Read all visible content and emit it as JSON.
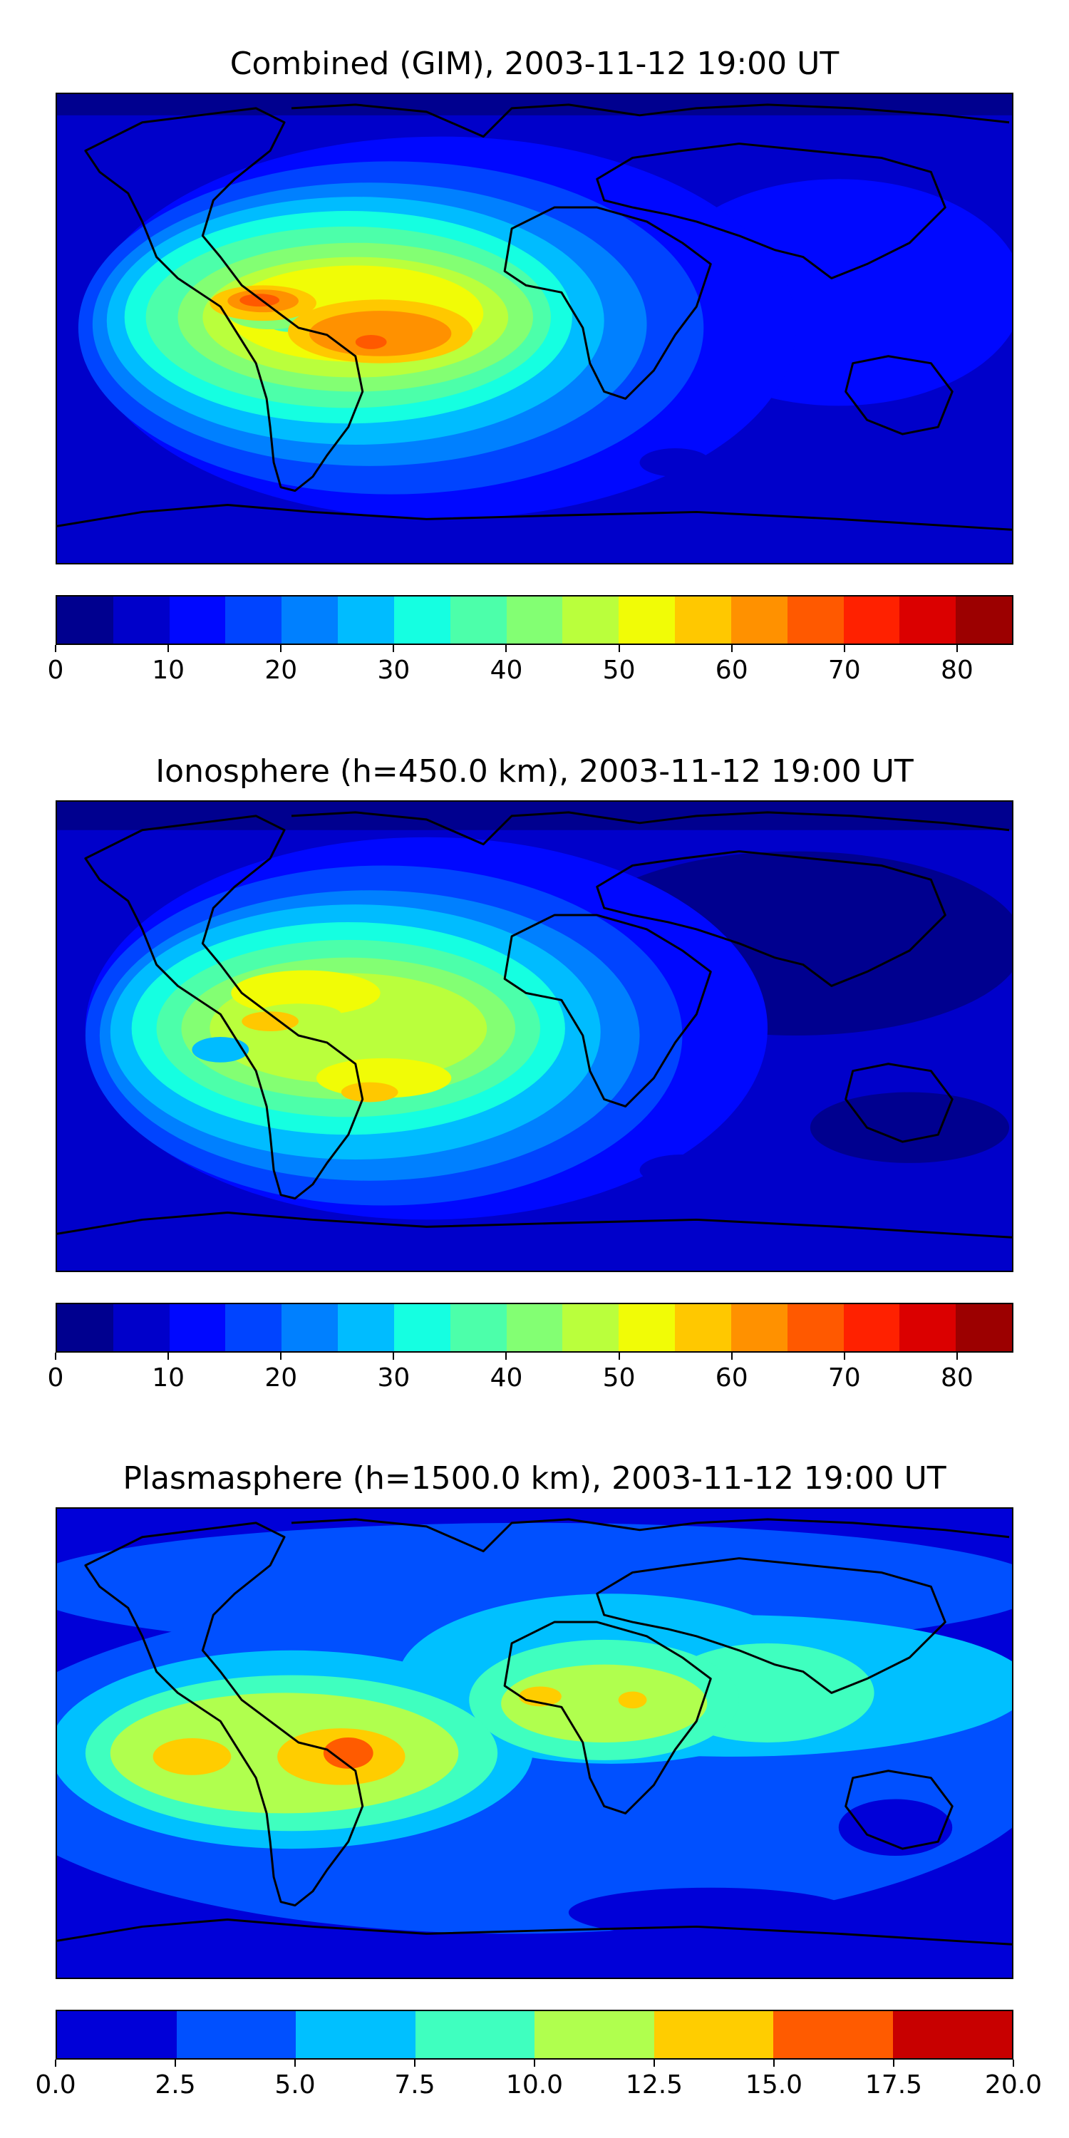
{
  "panels": [
    {
      "title": "Combined (GIM), 2003-11-12 19:00 UT",
      "colorbar": {
        "colors": [
          "#00008f",
          "#0000ca",
          "#0008ff",
          "#0044ff",
          "#0080ff",
          "#00bcff",
          "#15ffe1",
          "#4cffaa",
          "#83ff73",
          "#baff3c",
          "#f1fc06",
          "#ffc800",
          "#ff9100",
          "#ff5900",
          "#ff2100",
          "#db0000",
          "#9c0000"
        ],
        "ticks": [
          "0",
          "10",
          "20",
          "30",
          "40",
          "50",
          "60",
          "70",
          "80"
        ],
        "tick_values": [
          0,
          10,
          20,
          30,
          40,
          50,
          60,
          70,
          80
        ],
        "range": [
          0,
          85
        ]
      }
    },
    {
      "title": "Ionosphere  (h=450.0 km), 2003-11-12 19:00 UT",
      "colorbar": {
        "colors": [
          "#00008f",
          "#0000ca",
          "#0008ff",
          "#0044ff",
          "#0080ff",
          "#00bcff",
          "#15ffe1",
          "#4cffaa",
          "#83ff73",
          "#baff3c",
          "#f1fc06",
          "#ffc800",
          "#ff9100",
          "#ff5900",
          "#ff2100",
          "#db0000",
          "#9c0000"
        ],
        "ticks": [
          "0",
          "10",
          "20",
          "30",
          "40",
          "50",
          "60",
          "70",
          "80"
        ],
        "tick_values": [
          0,
          10,
          20,
          30,
          40,
          50,
          60,
          70,
          80
        ],
        "range": [
          0,
          85
        ]
      }
    },
    {
      "title": "Plasmasphere (h=1500.0 km), 2003-11-12 19:00 UT",
      "colorbar": {
        "colors": [
          "#0000d8",
          "#0050ff",
          "#00c0ff",
          "#3fffbf",
          "#b0ff4e",
          "#ffcd00",
          "#ff5b00",
          "#c80000"
        ],
        "ticks": [
          "0.0",
          "2.5",
          "5.0",
          "7.5",
          "10.0",
          "12.5",
          "15.0",
          "17.5",
          "20.0"
        ],
        "tick_values": [
          0,
          2.5,
          5,
          7.5,
          10,
          12.5,
          15,
          17.5,
          20
        ],
        "range": [
          0,
          20
        ]
      }
    }
  ]
}
